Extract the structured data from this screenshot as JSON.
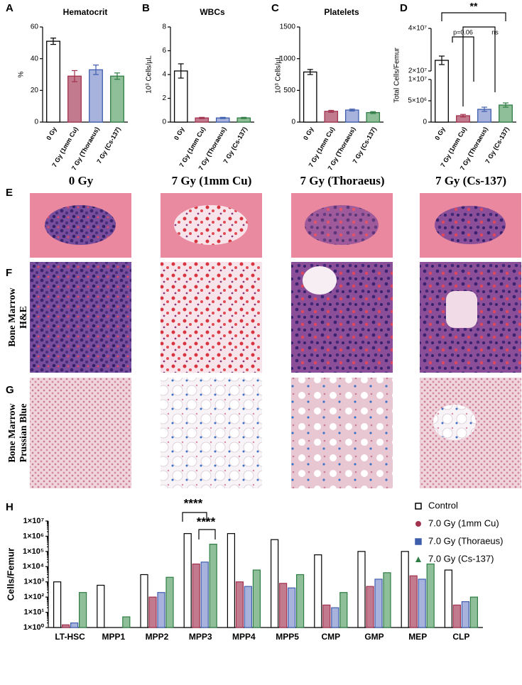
{
  "panel_labels": [
    "A",
    "B",
    "C",
    "D",
    "E",
    "F",
    "G",
    "H"
  ],
  "histology": {
    "columns": [
      "0 Gy",
      "7 Gy (1mm Cu)",
      "7 Gy (Thoraeus)",
      "7 Gy (Cs-137)"
    ],
    "rows": [
      [
        "Bone Marrow",
        "H&E"
      ],
      [
        "Bone Marrow",
        "Prussian Blue"
      ]
    ]
  },
  "chart_data": [
    {
      "type": "bar",
      "title": "Hematocrit",
      "ylabel": "%",
      "categories": [
        "0 Gy",
        "7 Gy (1mm Cu)",
        "7 Gy (Thoraeus)",
        "7 Gy (Cs-137)"
      ],
      "values": [
        51,
        29,
        33,
        29
      ],
      "errors": [
        2,
        3.5,
        3,
        2
      ],
      "colors": [
        "#ffffff",
        "#c27b8e",
        "#a7b3dd",
        "#8fbf98"
      ],
      "edge_colors": [
        "#000000",
        "#a3324f",
        "#3f5fae",
        "#2f7d45"
      ],
      "ylim": [
        0,
        60
      ],
      "yticks": [
        0,
        20,
        40,
        60
      ]
    },
    {
      "type": "bar",
      "title": "WBCs",
      "ylabel": "10³ Cells/µL",
      "categories": [
        "0 Gy",
        "7 Gy (1mm Cu)",
        "7 Gy (Thoraeus)",
        "7 Gy (Cs-137)"
      ],
      "values": [
        4.3,
        0.35,
        0.35,
        0.35
      ],
      "errors": [
        0.6,
        0.05,
        0.05,
        0.05
      ],
      "colors": [
        "#ffffff",
        "#c27b8e",
        "#a7b3dd",
        "#8fbf98"
      ],
      "edge_colors": [
        "#000000",
        "#a3324f",
        "#3f5fae",
        "#2f7d45"
      ],
      "ylim": [
        0,
        8
      ],
      "yticks": [
        0,
        2,
        4,
        6,
        8
      ]
    },
    {
      "type": "bar",
      "title": "Platelets",
      "ylabel": "10³ Cells/µL",
      "categories": [
        "0 Gy",
        "7 Gy (1mm Cu)",
        "7 Gy (Thoraeus)",
        "7 Gy (Cs-137)"
      ],
      "values": [
        790,
        170,
        190,
        150
      ],
      "errors": [
        40,
        15,
        15,
        15
      ],
      "colors": [
        "#ffffff",
        "#c27b8e",
        "#a7b3dd",
        "#8fbf98"
      ],
      "edge_colors": [
        "#000000",
        "#a3324f",
        "#3f5fae",
        "#2f7d45"
      ],
      "ylim": [
        0,
        1500
      ],
      "yticks": [
        0,
        500,
        1000,
        1500
      ]
    },
    {
      "type": "bar",
      "ylabel": "Total Cells/Femur",
      "categories": [
        "0 Gy",
        "7 Gy (1mm Cu)",
        "7 Gy (Thoraeus)",
        "7 Gy (Cs-137)"
      ],
      "values": [
        25000000,
        1500000,
        3000000,
        4000000
      ],
      "errors": [
        2000000,
        300000,
        500000,
        500000
      ],
      "colors": [
        "#ffffff",
        "#c27b8e",
        "#a7b3dd",
        "#8fbf98"
      ],
      "edge_colors": [
        "#000000",
        "#a3324f",
        "#3f5fae",
        "#2f7d45"
      ],
      "ylim": [
        0,
        40000000
      ],
      "ybreak": [
        10000000,
        20000000
      ],
      "yticks": [
        0,
        {
          "value": 5000000,
          "label": "5×10⁶"
        },
        {
          "value": 10000000,
          "label": "1×10⁷"
        },
        {
          "value": 20000000,
          "label": "2×10⁷"
        },
        {
          "value": 40000000,
          "label": "4×10⁷"
        }
      ],
      "annotations": [
        "**",
        "p=0.06",
        "ns"
      ]
    },
    {
      "type": "bar",
      "ylabel": "Cells/Femur",
      "log_scale": true,
      "categories": [
        "LT-HSC",
        "MPP1",
        "MPP2",
        "MPP3",
        "MPP4",
        "MPP5",
        "CMP",
        "GMP",
        "MEP",
        "CLP"
      ],
      "series": [
        {
          "name": "Control",
          "color": "#ffffff",
          "edge_color": "#000000",
          "values": [
            1000,
            600,
            3000,
            1500000,
            1500000,
            600000,
            60000,
            100000,
            100000,
            6000
          ]
        },
        {
          "name": "7.0 Gy (1mm Cu)",
          "color": "#c27b8e",
          "edge_color": "#a3324f",
          "values": [
            1.5,
            1,
            100,
            15000,
            1000,
            800,
            30,
            500,
            2500,
            30
          ]
        },
        {
          "name": "7.0 Gy (Thoraeus)",
          "color": "#a7b3dd",
          "edge_color": "#3f5fae",
          "values": [
            2,
            1,
            200,
            20000,
            500,
            400,
            20,
            1500,
            1500,
            50
          ]
        },
        {
          "name": "7.0 Gy (Cs-137)",
          "color": "#8fbf98",
          "edge_color": "#2f7d45",
          "values": [
            200,
            5,
            2000,
            300000,
            6000,
            3000,
            200,
            4000,
            15000,
            100
          ]
        }
      ],
      "ylim": [
        1,
        10000000
      ],
      "yticks": [
        {
          "value": 1,
          "label": "1×10⁰"
        },
        {
          "value": 10,
          "label": "1×10¹"
        },
        {
          "value": 100,
          "label": "1×10²"
        },
        {
          "value": 1000,
          "label": "1×10³"
        },
        {
          "value": 10000,
          "label": "1×10⁴"
        },
        {
          "value": 100000,
          "label": "1×10⁵"
        },
        {
          "value": 1000000,
          "label": "1×10⁶"
        },
        {
          "value": 10000000,
          "label": "1×10⁷"
        }
      ],
      "annotations": [
        "****",
        "****"
      ]
    }
  ]
}
